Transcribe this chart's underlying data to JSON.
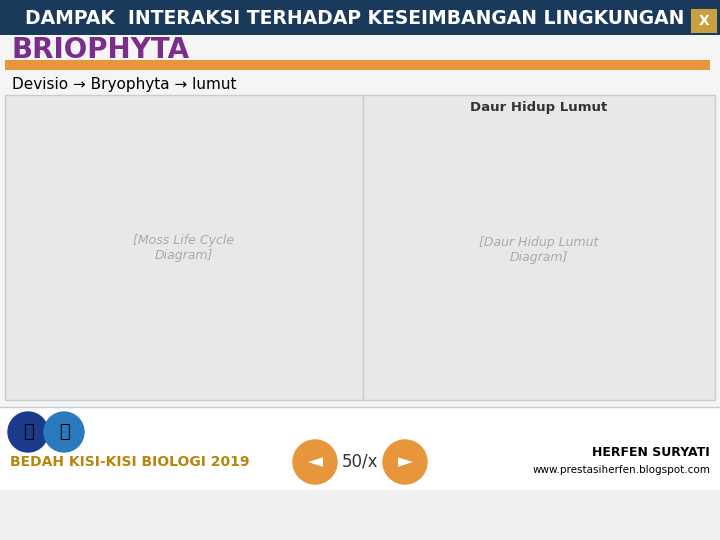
{
  "title": "DAMPAK  INTERAKSI TERHADAP KESEIMBANGAN LINGKUNGAN",
  "title_x_btn": "X",
  "header_bg": "#1a3a5c",
  "header_text_color": "#ffffff",
  "header_btn_color": "#c8a040",
  "section_title": "BRIOPHYTA",
  "section_title_color": "#7b2d8b",
  "orange_bar_color": "#e8963c",
  "subtitle": "Devisio → Bryophyta → lumut",
  "subtitle_color": "#000000",
  "bg_color": "#f0f0f0",
  "content_bg": "#f5f5f5",
  "footer_bg": "#ffffff",
  "footer_text": "BEDAH KISI-KISI BIOLOGI 2019",
  "footer_text_color": "#b8860b",
  "page_num": "50/x",
  "page_num_color": "#333333",
  "author_name": "HERFEN SURYATI",
  "author_web": "www.prestasiherfen.blogspot.com",
  "author_color": "#000000",
  "arrow_btn_color": "#e8963c",
  "left_image_bg": "#e8e8e8",
  "right_image_bg": "#e8e8e8",
  "left_image_border": "#cccccc",
  "right_image_border": "#cccccc"
}
